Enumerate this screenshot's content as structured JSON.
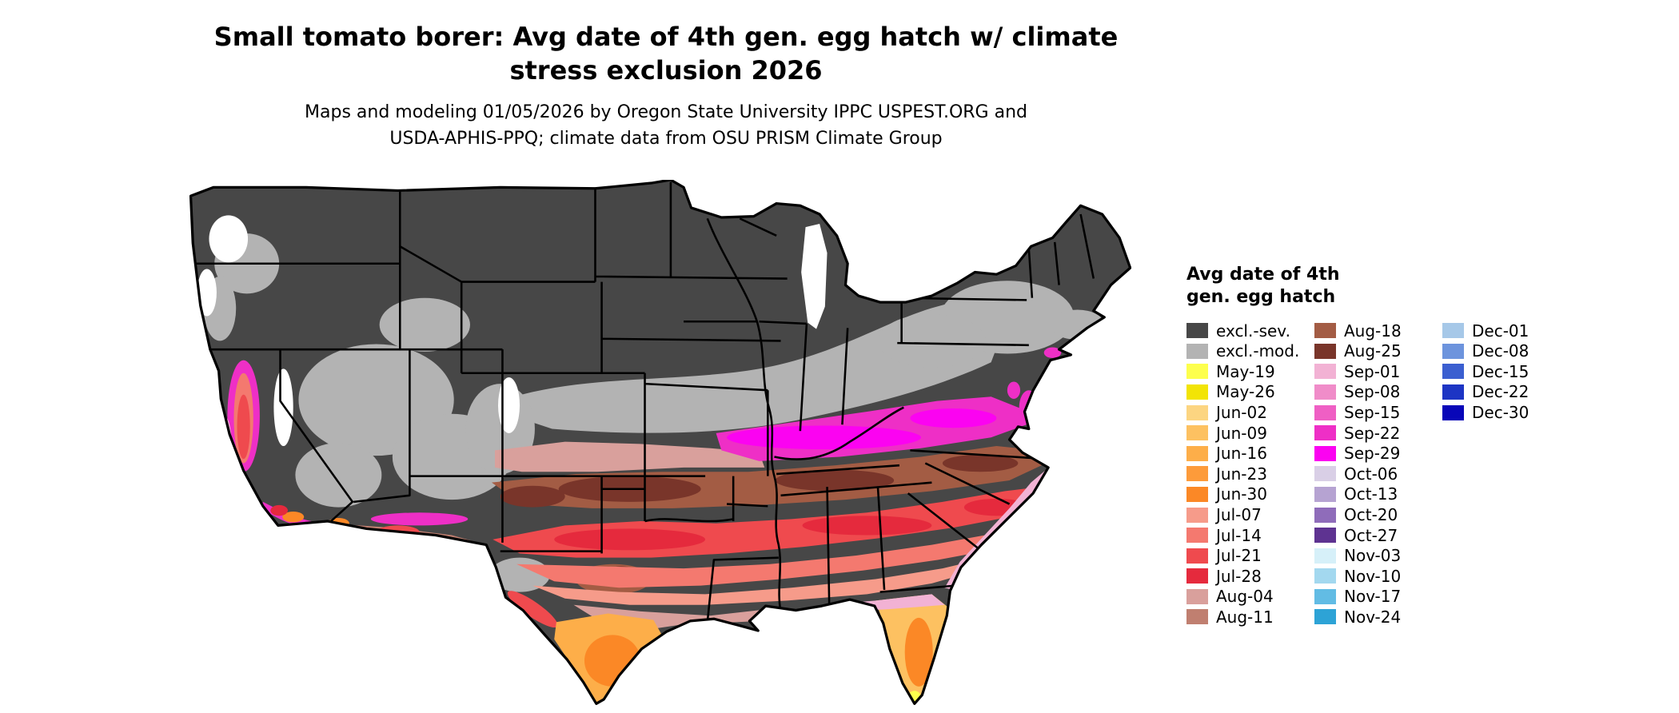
{
  "header": {
    "title_line1": "Small tomato borer: Avg date of 4th gen. egg hatch w/ climate",
    "title_line2": "stress exclusion 2026",
    "subtitle_line1": "Maps and modeling 01/05/2026 by Oregon State University IPPC USPEST.ORG and",
    "subtitle_line2": "USDA-APHIS-PPQ; climate data from OSU PRISM Climate Group"
  },
  "legend": {
    "title_line1": "Avg date of 4th",
    "title_line2": "gen. egg hatch",
    "columns": [
      {
        "items": [
          {
            "label": "excl.-sev.",
            "color": "#474747"
          },
          {
            "label": "excl.-mod.",
            "color": "#b3b3b3"
          },
          {
            "label": "May-19",
            "color": "#fdff4d"
          },
          {
            "label": "May-26",
            "color": "#f2e405"
          },
          {
            "label": "Jun-02",
            "color": "#fcd581"
          },
          {
            "label": "Jun-09",
            "color": "#fdc161"
          },
          {
            "label": "Jun-16",
            "color": "#fdae49"
          },
          {
            "label": "Jun-23",
            "color": "#fd9b3a"
          },
          {
            "label": "Jun-30",
            "color": "#fb8826"
          },
          {
            "label": "Jul-07",
            "color": "#f69b8a"
          },
          {
            "label": "Jul-14",
            "color": "#f4796f"
          },
          {
            "label": "Jul-21",
            "color": "#ef4a4e"
          },
          {
            "label": "Jul-28",
            "color": "#e52a3d"
          },
          {
            "label": "Aug-04",
            "color": "#d9a09c"
          },
          {
            "label": "Aug-11",
            "color": "#c07f70"
          }
        ]
      },
      {
        "items": [
          {
            "label": "Aug-18",
            "color": "#a35c44"
          },
          {
            "label": "Aug-25",
            "color": "#79352a"
          },
          {
            "label": "Sep-01",
            "color": "#f2b2d4"
          },
          {
            "label": "Sep-08",
            "color": "#f08cc9"
          },
          {
            "label": "Sep-15",
            "color": "#ef5fc4"
          },
          {
            "label": "Sep-22",
            "color": "#ee2fc6"
          },
          {
            "label": "Sep-29",
            "color": "#fb03f1"
          },
          {
            "label": "Oct-06",
            "color": "#d9cfe6"
          },
          {
            "label": "Oct-13",
            "color": "#b6a3d2"
          },
          {
            "label": "Oct-20",
            "color": "#8f6cba"
          },
          {
            "label": "Oct-27",
            "color": "#5e3391"
          },
          {
            "label": "Nov-03",
            "color": "#d6f0f9"
          },
          {
            "label": "Nov-10",
            "color": "#a3d8ef"
          },
          {
            "label": "Nov-17",
            "color": "#62bce4"
          },
          {
            "label": "Nov-24",
            "color": "#2da3d6"
          }
        ]
      },
      {
        "items": [
          {
            "label": "Dec-01",
            "color": "#a6c8e8"
          },
          {
            "label": "Dec-08",
            "color": "#6d94dd"
          },
          {
            "label": "Dec-15",
            "color": "#3b5fd0"
          },
          {
            "label": "Dec-22",
            "color": "#1d35c4"
          },
          {
            "label": "Dec-30",
            "color": "#0806b8"
          }
        ]
      }
    ]
  }
}
